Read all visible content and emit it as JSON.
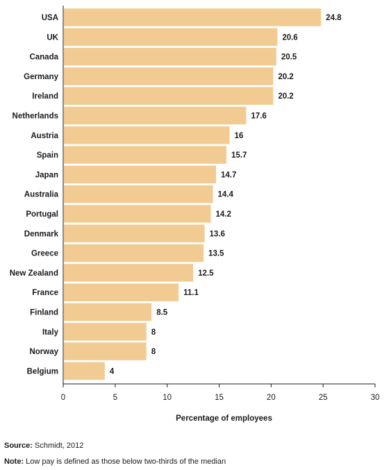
{
  "chart_data": {
    "type": "bar",
    "orientation": "horizontal",
    "categories": [
      "USA",
      "UK",
      "Canada",
      "Germany",
      "Ireland",
      "Netherlands",
      "Austria",
      "Spain",
      "Japan",
      "Australia",
      "Portugal",
      "Denmark",
      "Greece",
      "New Zealand",
      "France",
      "Finland",
      "Italy",
      "Norway",
      "Belgium"
    ],
    "values": [
      24.8,
      20.6,
      20.5,
      20.2,
      20.2,
      17.6,
      16,
      15.7,
      14.7,
      14.4,
      14.2,
      13.6,
      13.5,
      12.5,
      11.1,
      8.5,
      8,
      8,
      4
    ],
    "value_labels": [
      "24.8",
      "20.6",
      "20.5",
      "20.2",
      "20.2",
      "17.6",
      "16",
      "15.7",
      "14.7",
      "14.4",
      "14.2",
      "13.6",
      "13.5",
      "12.5",
      "11.1",
      "8.5",
      "8",
      "8",
      "4"
    ],
    "xlabel": "Percentage of employees",
    "ylabel": "",
    "xlim": [
      0,
      30
    ],
    "x_ticks": [
      0,
      5,
      10,
      15,
      20,
      25,
      30
    ],
    "x_tick_labels": [
      "0",
      "5",
      "10",
      "15",
      "20",
      "25",
      "30"
    ],
    "grid": false,
    "legend": "none",
    "bar_color": "#f2cb93",
    "axis_color": "#1a1a1a"
  },
  "footer": {
    "source_label": "Source:",
    "source_text": "Schmidt, 2012",
    "note_label": "Note:",
    "note_text": "Low pay is defined as those below two-thirds of the median"
  }
}
